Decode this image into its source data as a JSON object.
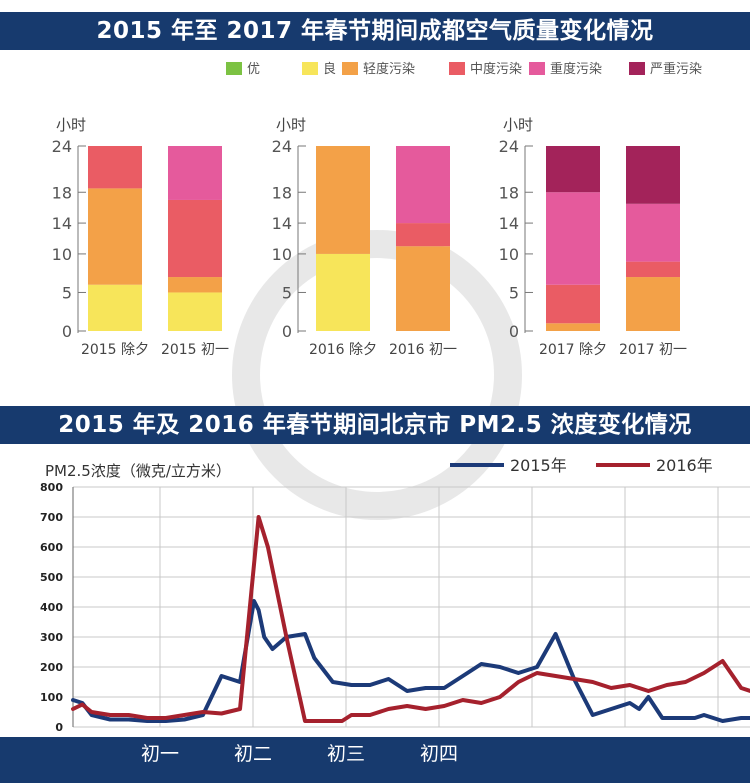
{
  "colors": {
    "navy": "#173a6e",
    "you": "#7cc243",
    "liang": "#f7e55a",
    "qingdu": "#f3a148",
    "zhongdu": "#ea5c64",
    "zhongdu2": "#e55a9c",
    "yanzhong": "#a3235a",
    "line2015": "#1c3a78",
    "line2016": "#a5212d"
  },
  "banner1": "2015 年至 2017 年春节期间成都空气质量变化情况",
  "banner2": "2015 年及 2016 年春节期间北京市 PM2.5 浓度变化情况",
  "legend": [
    "优",
    "良",
    "轻度污染",
    "中度污染",
    "重度污染",
    "严重污染"
  ],
  "unit": "小时",
  "y_ticks": [
    "24",
    "18",
    "14",
    "10",
    "5",
    "0"
  ],
  "pm_axis_title": "PM2.5浓度（微克/立方米）",
  "pm_y_ticks": [
    "800",
    "700",
    "600",
    "500",
    "400",
    "300",
    "200",
    "100",
    "0"
  ],
  "pm_x_ticks": [
    "初一",
    "初二",
    "初三",
    "初四"
  ],
  "chart_data": [
    {
      "type": "bar",
      "stacked": true,
      "ylabel": "小时",
      "ylim": [
        0,
        24
      ],
      "categories": [
        "2015 除夕",
        "2015 初一"
      ],
      "series": [
        {
          "name": "优",
          "values": [
            0,
            0
          ]
        },
        {
          "name": "良",
          "values": [
            6,
            5
          ]
        },
        {
          "name": "轻度污染",
          "values": [
            12.5,
            2
          ]
        },
        {
          "name": "中度污染",
          "values": [
            5.5,
            10
          ]
        },
        {
          "name": "重度污染",
          "values": [
            0,
            7
          ]
        },
        {
          "name": "严重污染",
          "values": [
            0,
            0
          ]
        }
      ]
    },
    {
      "type": "bar",
      "stacked": true,
      "ylabel": "小时",
      "ylim": [
        0,
        24
      ],
      "categories": [
        "2016 除夕",
        "2016 初一"
      ],
      "series": [
        {
          "name": "优",
          "values": [
            0,
            0
          ]
        },
        {
          "name": "良",
          "values": [
            10,
            0
          ]
        },
        {
          "name": "轻度污染",
          "values": [
            14,
            11
          ]
        },
        {
          "name": "中度污染",
          "values": [
            0,
            3
          ]
        },
        {
          "name": "重度污染",
          "values": [
            0,
            10
          ]
        },
        {
          "name": "严重污染",
          "values": [
            0,
            0
          ]
        }
      ]
    },
    {
      "type": "bar",
      "stacked": true,
      "ylabel": "小时",
      "ylim": [
        0,
        24
      ],
      "categories": [
        "2017 除夕",
        "2017 初一"
      ],
      "series": [
        {
          "name": "优",
          "values": [
            0,
            0
          ]
        },
        {
          "name": "良",
          "values": [
            0,
            0
          ]
        },
        {
          "name": "轻度污染",
          "values": [
            1,
            7
          ]
        },
        {
          "name": "中度污染",
          "values": [
            5,
            2
          ]
        },
        {
          "name": "重度污染",
          "values": [
            12,
            7.5
          ]
        },
        {
          "name": "严重污染",
          "values": [
            6,
            7.5
          ]
        }
      ]
    },
    {
      "type": "line",
      "title": "2015 年及 2016 年春节期间北京市 PM2.5 浓度变化情况",
      "ylabel": "PM2.5浓度（微克/立方米）",
      "ylim": [
        0,
        800
      ],
      "x_ticks": [
        "初一",
        "初二",
        "初三",
        "初四"
      ],
      "x_range": [
        0,
        7.5
      ],
      "series": [
        {
          "name": "2015年",
          "x": [
            0,
            0.1,
            0.2,
            0.4,
            0.6,
            0.8,
            1.0,
            1.2,
            1.4,
            1.6,
            1.8,
            1.95,
            2.0,
            2.06,
            2.15,
            2.3,
            2.5,
            2.6,
            2.8,
            3.0,
            3.2,
            3.4,
            3.6,
            3.8,
            4.0,
            4.2,
            4.4,
            4.6,
            4.8,
            5.0,
            5.2,
            5.4,
            5.6,
            5.8,
            6.0,
            6.1,
            6.2,
            6.35,
            6.5,
            6.7,
            6.8,
            7.0,
            7.2,
            7.4,
            7.5
          ],
          "y": [
            90,
            80,
            40,
            25,
            25,
            20,
            20,
            25,
            40,
            170,
            150,
            420,
            390,
            300,
            260,
            300,
            310,
            230,
            150,
            140,
            140,
            160,
            120,
            130,
            130,
            170,
            210,
            200,
            180,
            200,
            310,
            160,
            40,
            60,
            80,
            60,
            100,
            30,
            30,
            30,
            40,
            20,
            30,
            30,
            50
          ]
        },
        {
          "name": "2016年",
          "x": [
            0,
            0.1,
            0.2,
            0.4,
            0.6,
            0.8,
            1.0,
            1.2,
            1.4,
            1.6,
            1.8,
            2.0,
            2.1,
            2.3,
            2.5,
            2.7,
            2.9,
            3.0,
            3.2,
            3.4,
            3.6,
            3.8,
            4.0,
            4.2,
            4.4,
            4.6,
            4.8,
            5.0,
            5.2,
            5.4,
            5.6,
            5.8,
            6.0,
            6.2,
            6.4,
            6.6,
            6.8,
            7.0,
            7.2,
            7.4,
            7.5
          ],
          "y": [
            60,
            75,
            50,
            40,
            40,
            30,
            30,
            40,
            50,
            45,
            60,
            700,
            600,
            300,
            20,
            20,
            20,
            40,
            40,
            60,
            70,
            60,
            70,
            90,
            80,
            100,
            150,
            180,
            170,
            160,
            150,
            130,
            140,
            120,
            140,
            150,
            180,
            220,
            130,
            110,
            100
          ]
        }
      ]
    }
  ]
}
